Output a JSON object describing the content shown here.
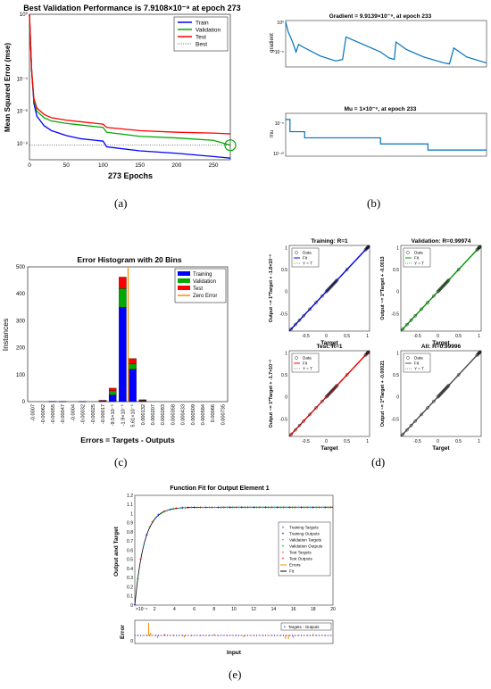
{
  "captions": [
    "(a)",
    "(b)",
    "(c)",
    "(d)",
    "(e)"
  ],
  "colors": {
    "train": "#0000ff",
    "validation": "#00aa00",
    "test": "#ff0000",
    "matlab_blue": "#0072bd",
    "orange": "#ff8c00",
    "gray": "#888888"
  },
  "chart_data": [
    {
      "id": "performance",
      "type": "line",
      "title": "Best Validation Performance is 7.9108×10⁻⁹ at epoch 273",
      "xlabel": "273 Epochs",
      "ylabel": "Mean Squared Error  (mse)",
      "y_scale": "log",
      "xlim": [
        0,
        273
      ],
      "ylim_exp": [
        -9,
        0
      ],
      "xticks": [
        "0",
        "50",
        "100",
        "150",
        "200",
        "250"
      ],
      "yticks": [
        "10⁰",
        "10⁻⁴",
        "10⁻⁶",
        "10⁻⁸"
      ],
      "legend": [
        "Train",
        "Validation",
        "Test",
        "Best"
      ],
      "legend_position": "top-right",
      "series": [
        {
          "name": "Train",
          "x": [
            0,
            3,
            6,
            10,
            20,
            30,
            50,
            70,
            90,
            100,
            105,
            150,
            200,
            250,
            273
          ],
          "y_exp": [
            0,
            -3.5,
            -5.5,
            -6.3,
            -6.9,
            -7.2,
            -7.5,
            -7.7,
            -7.8,
            -7.85,
            -8.2,
            -8.45,
            -8.6,
            -8.8,
            -8.9
          ]
        },
        {
          "name": "Validation",
          "x": [
            0,
            3,
            6,
            10,
            20,
            30,
            50,
            70,
            90,
            100,
            105,
            150,
            200,
            250,
            273
          ],
          "y_exp": [
            0,
            -3.5,
            -5.3,
            -6.0,
            -6.4,
            -6.6,
            -6.75,
            -6.85,
            -6.95,
            -7.0,
            -7.3,
            -7.55,
            -7.65,
            -7.8,
            -8.1
          ]
        },
        {
          "name": "Test",
          "x": [
            0,
            3,
            6,
            10,
            20,
            30,
            50,
            70,
            90,
            100,
            105,
            150,
            200,
            250,
            273
          ],
          "y_exp": [
            0,
            -3.5,
            -5.2,
            -5.8,
            -6.2,
            -6.4,
            -6.55,
            -6.65,
            -6.75,
            -6.8,
            -7.0,
            -7.2,
            -7.3,
            -7.35,
            -7.4
          ]
        }
      ],
      "best": {
        "x": 273,
        "y_exp": -8.1
      }
    },
    {
      "id": "gradient",
      "type": "line",
      "title": "Gradient = 9.9139×10⁻⁹, at epoch 233",
      "ylabel": "gradient",
      "y_scale": "log",
      "xlim": [
        0,
        233
      ],
      "yticks": [
        "10⁰",
        "10⁻⁵"
      ],
      "x": [
        0,
        3,
        8,
        12,
        15,
        20,
        40,
        58,
        66,
        70,
        90,
        110,
        120,
        126,
        128,
        140,
        160,
        184,
        190,
        195,
        210,
        233
      ],
      "y_exp": [
        0,
        -2,
        -4,
        -6,
        -4.5,
        -5,
        -6.8,
        -7.8,
        -7.5,
        -3,
        -4.5,
        -6,
        -7.2,
        -7.5,
        -4,
        -5.5,
        -7,
        -8.2,
        -8.4,
        -5.2,
        -7,
        -8.2
      ]
    },
    {
      "id": "mu",
      "type": "line",
      "title": "Mu = 1×10⁻⁶, at epoch 233",
      "ylabel": "mu",
      "y_scale": "log",
      "xlim": [
        0,
        233
      ],
      "yticks": [
        "10⁻⁵",
        "10⁻¹⁰"
      ],
      "x": [
        0,
        5,
        5,
        22,
        22,
        110,
        110,
        165,
        165,
        233
      ],
      "y_exp": [
        -3,
        -3,
        -5,
        -5,
        -6,
        -6,
        -7,
        -7,
        -8,
        -8
      ]
    },
    {
      "id": "histogram",
      "type": "bar",
      "title": "Error Histogram with 20 Bins",
      "xlabel": "Errors = Targets - Outputs",
      "ylabel": "Instances",
      "ylim": [
        0,
        500
      ],
      "yticks": [
        "0",
        "100",
        "200",
        "300",
        "400",
        "500"
      ],
      "categories": [
        "-0.0007",
        "-0.00062",
        "-0.00055",
        "-0.00047",
        "-0.0004",
        "-0.00032",
        "-0.00025",
        "-0.00017",
        "-9.5×10⁻⁵",
        "-1.9×10⁻⁵",
        "5.61×10⁻⁵",
        "0.000132",
        "0.000207",
        "0.000283",
        "0.000358",
        "0.000433",
        "0.000509",
        "0.000584",
        "0.00066",
        "0.000735"
      ],
      "series": [
        {
          "name": "Training",
          "values": [
            0,
            0,
            1,
            1,
            0,
            1,
            0,
            3,
            25,
            350,
            120,
            3,
            0,
            0,
            0,
            0,
            0,
            0,
            0,
            0
          ]
        },
        {
          "name": "Validation",
          "values": [
            0,
            0,
            0,
            0,
            0,
            0,
            0,
            1,
            15,
            70,
            20,
            2,
            0,
            0,
            0,
            0,
            0,
            0,
            0,
            0
          ]
        },
        {
          "name": "Test",
          "values": [
            0,
            0,
            0,
            0,
            0,
            0,
            0,
            1,
            10,
            42,
            20,
            2,
            0,
            0,
            0,
            0,
            0,
            0,
            0,
            0
          ]
        }
      ],
      "legend": [
        "Training",
        "Validation",
        "Test",
        "Zero Error"
      ],
      "legend_position": "top-right",
      "zero_error_bin": 10
    },
    {
      "id": "regression",
      "type": "scatter",
      "panels": [
        {
          "title": "Training: R=1",
          "ylabel": "Output ~= 1*Target + -1.8×10⁻⁶",
          "color": "#0000ff"
        },
        {
          "title": "Validation: R=0.99974",
          "ylabel": "Output ~= 1*Target + -0.0013",
          "color": "#00aa00"
        },
        {
          "title": "Test: R=1",
          "ylabel": "Output ~= 1*Target + -1.7×10⁻⁵",
          "color": "#ff0000"
        },
        {
          "title": "All: R=0.99996",
          "ylabel": "Output ~= 1*Target + -0.00021",
          "color": "#555555"
        }
      ],
      "xlabel": "Target",
      "lim": [
        -0.9,
        1.05
      ],
      "ticks": [
        "-0.5",
        "0",
        "0.5",
        "1"
      ],
      "legend": [
        "Data",
        "Fit",
        "Y = T"
      ],
      "points_x": [
        -0.85,
        -0.75,
        -0.65,
        -0.55,
        -0.4,
        -0.25,
        -0.1,
        0,
        0.02,
        0.04,
        0.06,
        0.08,
        0.1,
        0.12,
        0.14,
        0.16,
        0.18,
        0.2,
        0.22,
        0.24,
        0.26,
        0.5,
        0.95,
        0.97,
        0.99,
        1.0,
        1.01,
        1.02
      ]
    },
    {
      "id": "fit",
      "type": "line",
      "title": "Function Fit for Output Element 1",
      "ylabel": "Output and Target",
      "xlabel": "Input",
      "xlim": [
        0,
        20
      ],
      "ylim": [
        0,
        1.2
      ],
      "xticks": [
        "2",
        "4",
        "6",
        "8",
        "10",
        "12",
        "14",
        "16",
        "18",
        "20"
      ],
      "yticks": [
        "0",
        "0.1",
        "0.2",
        "0.3",
        "0.4",
        "0.5",
        "0.6",
        "0.7",
        "0.8",
        "0.9",
        "1",
        "1.1",
        "1.2"
      ],
      "x_exponent_label": "×10⁻⁴",
      "legend": [
        "Training Targets",
        "Training Outputs",
        "Validation Targets",
        "Validation Outputs",
        "Test Targets",
        "Test Outputs",
        "Errors",
        "Fit"
      ],
      "legend_position": "right",
      "asymptote": 1.07,
      "rate": 1.05,
      "error_ylabel": "Error",
      "error_legend": "Targets - Outputs",
      "error_ytick": "0"
    }
  ]
}
